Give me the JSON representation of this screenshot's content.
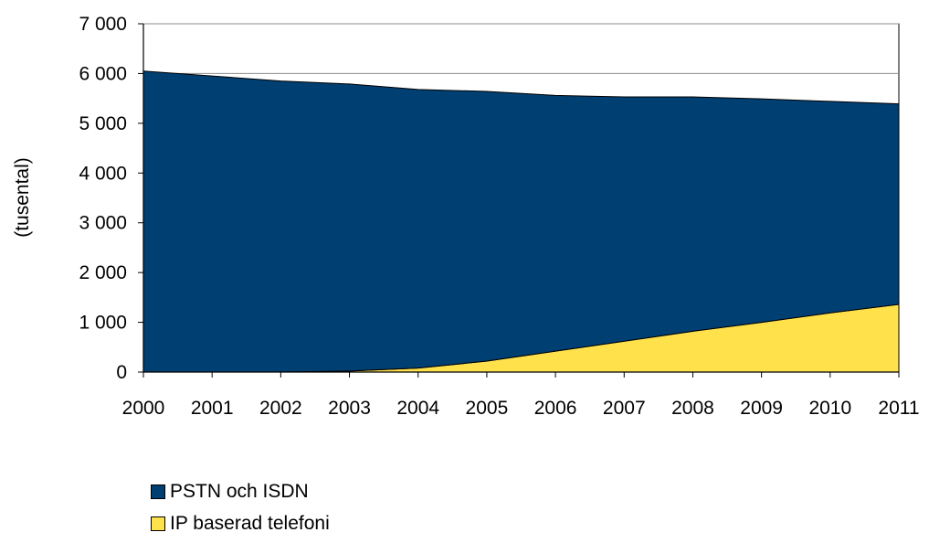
{
  "chart_data": {
    "type": "area",
    "stacked": true,
    "categories": [
      "2000",
      "2001",
      "2002",
      "2003",
      "2004",
      "2005",
      "2006",
      "2007",
      "2008",
      "2009",
      "2010",
      "2011"
    ],
    "series": [
      {
        "name": "IP baserad telefoni",
        "color": "#FFE14B",
        "values": [
          0,
          0,
          0,
          20,
          80,
          220,
          420,
          620,
          820,
          1000,
          1190,
          1360
        ]
      },
      {
        "name": "PSTN och ISDN",
        "color": "#003F72",
        "values": [
          6050,
          5950,
          5850,
          5770,
          5600,
          5420,
          5140,
          4910,
          4710,
          4490,
          4250,
          4030
        ]
      }
    ],
    "ylabel": "(tusental)",
    "xlabel": "",
    "ylim": [
      0,
      7000
    ],
    "yticks": [
      0,
      1000,
      2000,
      3000,
      4000,
      5000,
      6000,
      7000
    ],
    "ytick_labels": [
      "0",
      "1 000",
      "2 000",
      "3 000",
      "4 000",
      "5 000",
      "6 000",
      "7 000"
    ],
    "grid": true,
    "legend_position": "bottom-left",
    "legend_order": [
      "PSTN och ISDN",
      "IP baserad telefoni"
    ]
  }
}
